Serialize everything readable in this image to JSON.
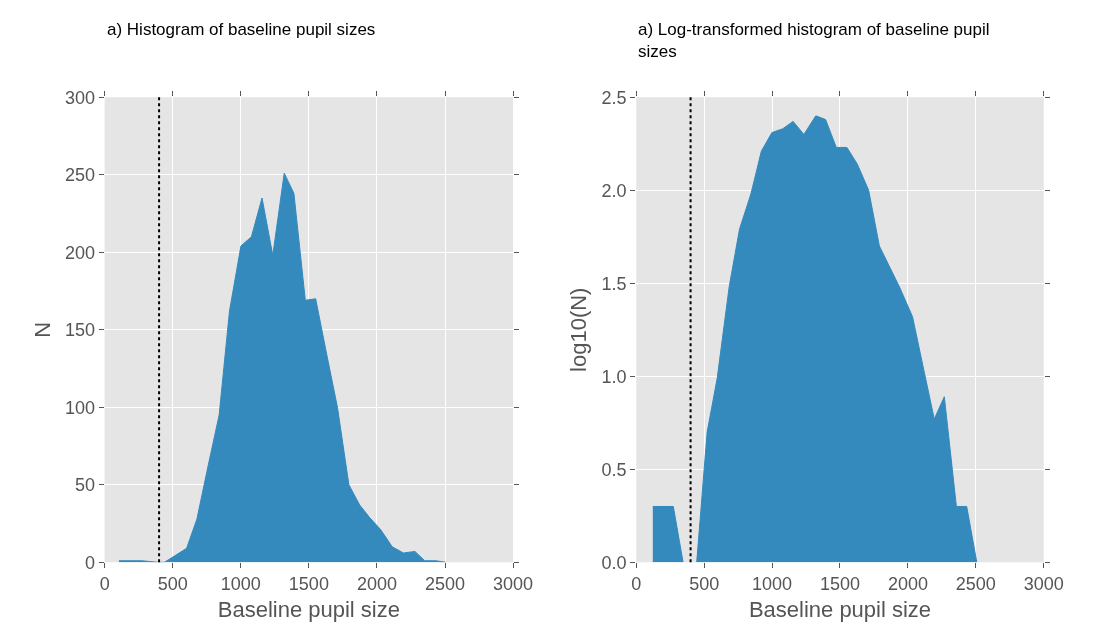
{
  "chart_data": [
    {
      "type": "area",
      "title": "a) Histogram of baseline pupil sizes",
      "xlabel": "Baseline pupil size",
      "ylabel": "N",
      "color": "#348abd",
      "x": [
        105,
        272,
        392,
        440,
        602,
        678,
        762,
        841,
        917,
        1001,
        1078,
        1156,
        1235,
        1319,
        1390,
        1474,
        1550,
        1629,
        1710,
        1794,
        1873,
        1945,
        2028,
        2112,
        2195,
        2279,
        2351,
        2434,
        2506
      ],
      "values": [
        1,
        1,
        0,
        0,
        9,
        28,
        63,
        95,
        162,
        204,
        210,
        235,
        198,
        251,
        238,
        169,
        170,
        135,
        100,
        50,
        37,
        29,
        21,
        10,
        6,
        7,
        1,
        1,
        0
      ],
      "xlim": [
        0,
        3000
      ],
      "xticks": [
        0,
        500,
        1000,
        1500,
        2000,
        2500,
        3000
      ],
      "ylim": [
        0,
        300
      ],
      "yticks": [
        0,
        50,
        100,
        150,
        200,
        250,
        300
      ],
      "grid": true,
      "ref_lines": [
        {
          "axis": "x",
          "value": 400,
          "color": "#000000",
          "line_style": "dotted"
        }
      ]
    },
    {
      "type": "area",
      "title": "a) Log-transformed histogram of baseline pupil sizes",
      "xlabel": "Baseline pupil size",
      "ylabel": "log10(N)",
      "color": "#348abd",
      "x": [
        122,
        273,
        345,
        395,
        445,
        522,
        596,
        684,
        760,
        844,
        921,
        999,
        1078,
        1155,
        1234,
        1322,
        1394,
        1473,
        1551,
        1628,
        1711,
        1790,
        1938,
        2034,
        2118,
        2194,
        2268,
        2357,
        2433,
        2507
      ],
      "values": [
        0.3,
        0.3,
        0,
        null,
        0,
        0.7,
        0.99,
        1.48,
        1.79,
        1.98,
        2.21,
        2.31,
        2.33,
        2.37,
        2.3,
        2.4,
        2.38,
        2.23,
        2.23,
        2.14,
        2.0,
        1.7,
        1.48,
        1.32,
        1.03,
        0.77,
        0.89,
        0.3,
        0.3,
        0
      ],
      "xlim": [
        0,
        3000
      ],
      "xticks": [
        0,
        500,
        1000,
        1500,
        2000,
        2500,
        3000
      ],
      "ylim": [
        0,
        2.5
      ],
      "yticks": [
        {
          "value": 0,
          "label": "0.0"
        },
        0.5,
        {
          "value": 1,
          "label": "1.0"
        },
        1.5,
        {
          "value": 2,
          "label": "2.0"
        },
        2.5
      ],
      "grid": true,
      "ref_lines": [
        {
          "axis": "x",
          "value": 400,
          "color": "#000000",
          "line_style": "dotted"
        }
      ]
    }
  ]
}
